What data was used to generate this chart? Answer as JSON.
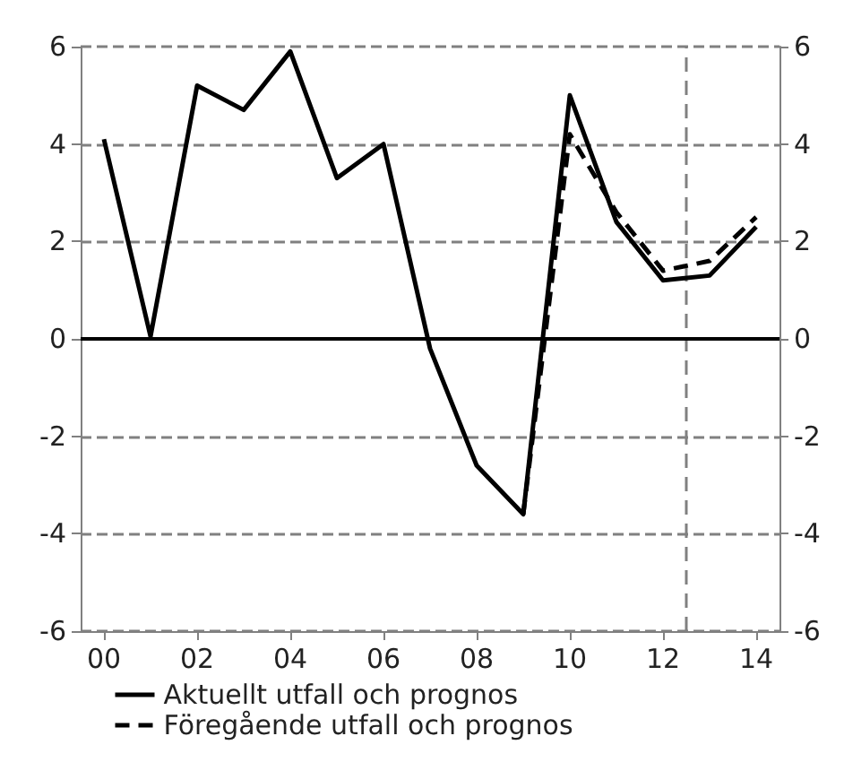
{
  "chart_data": {
    "type": "line",
    "x": [
      2000,
      2001,
      2002,
      2003,
      2004,
      2005,
      2006,
      2007,
      2008,
      2009,
      2010,
      2011,
      2012,
      2013,
      2014
    ],
    "series": [
      {
        "name": "Aktuellt utfall och prognos",
        "color": "#000000",
        "line_style": "solid",
        "values": [
          4.1,
          0.05,
          5.2,
          4.7,
          5.9,
          3.3,
          4.0,
          -0.2,
          -2.6,
          -3.6,
          5.0,
          2.4,
          1.2,
          1.3,
          2.3
        ]
      },
      {
        "name": "Föregående utfall och prognos",
        "color": "#000000",
        "line_style": "dashed",
        "values": [
          null,
          null,
          null,
          null,
          null,
          null,
          null,
          null,
          null,
          -3.6,
          4.2,
          2.6,
          1.4,
          1.6,
          2.5
        ]
      }
    ],
    "xlim": [
      1999.5,
      2014.5
    ],
    "xticks": [
      {
        "value": 2000,
        "label": "00"
      },
      {
        "value": 2002,
        "label": "02"
      },
      {
        "value": 2004,
        "label": "04"
      },
      {
        "value": 2006,
        "label": "06"
      },
      {
        "value": 2008,
        "label": "08"
      },
      {
        "value": 2010,
        "label": "10"
      },
      {
        "value": 2012,
        "label": "12"
      },
      {
        "value": 2014,
        "label": "14"
      }
    ],
    "ylim": [
      -6,
      6
    ],
    "yticks": [
      -6,
      -4,
      -2,
      0,
      2,
      4,
      6
    ],
    "y2lim": [
      -6,
      6
    ],
    "y2ticks": [
      -6,
      -4,
      -2,
      0,
      2,
      4,
      6
    ],
    "grid": "y",
    "legend": "bottom left",
    "marker": "none",
    "ref_lines": [
      {
        "axis": "x",
        "value": 2012.5,
        "color": "#808080",
        "line_style": "dashed"
      },
      {
        "axis": "y",
        "value": 0,
        "color": "#000000",
        "line_style": "solid"
      }
    ]
  }
}
